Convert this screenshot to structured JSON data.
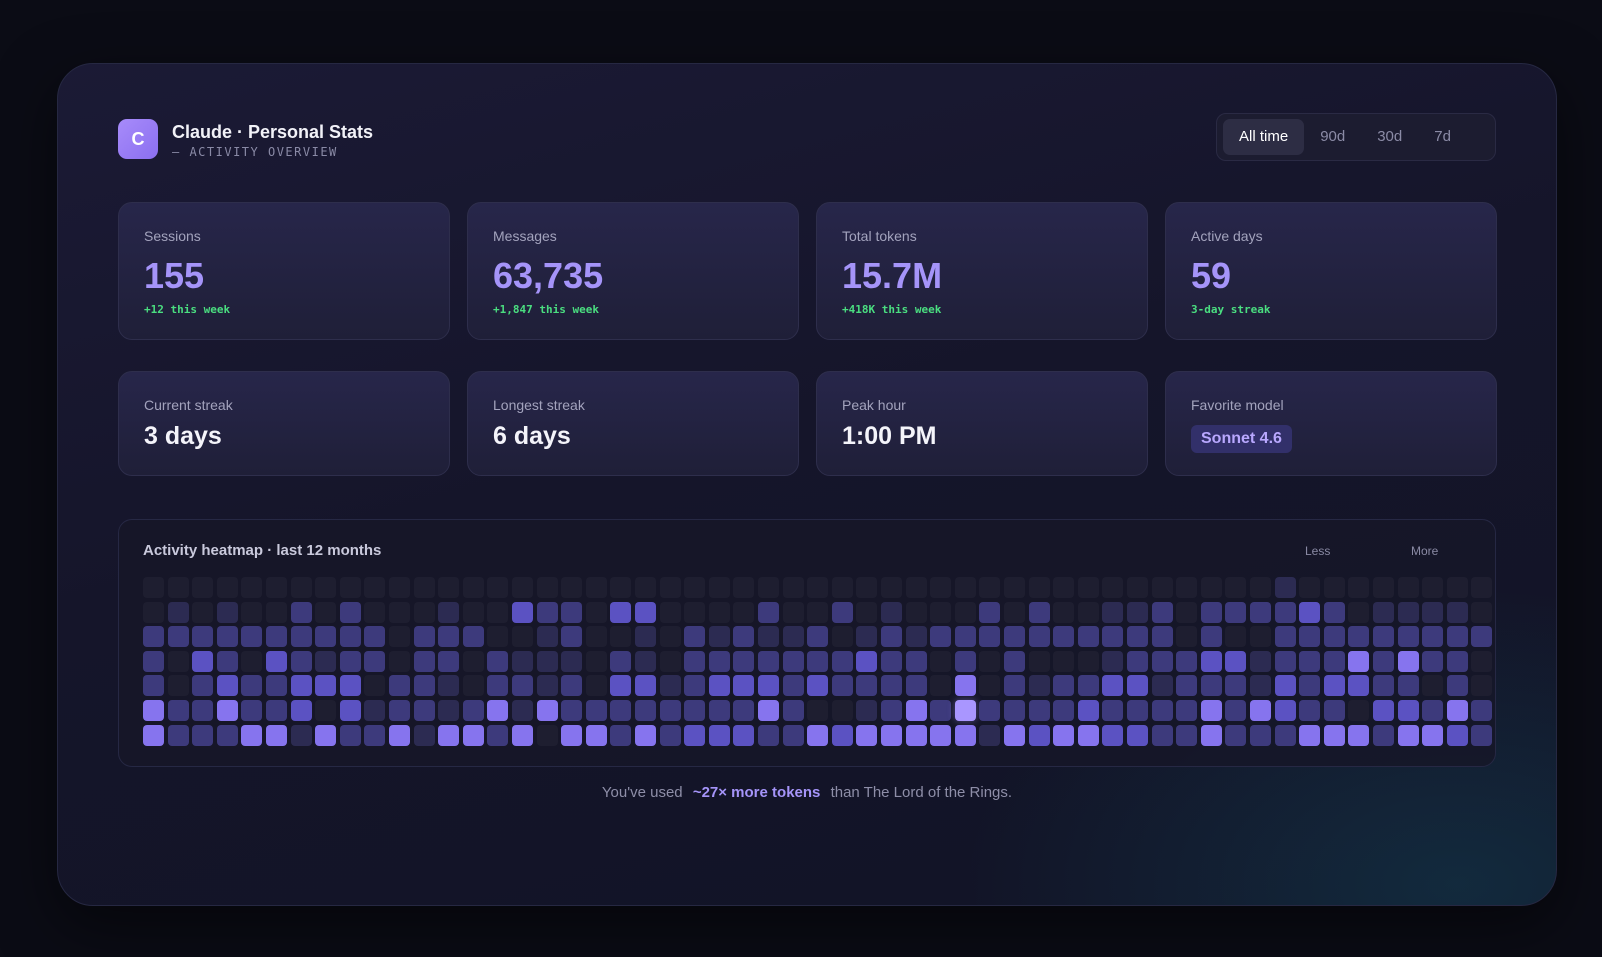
{
  "app": {
    "logo_letter": "C",
    "title": "Claude · Personal Stats",
    "subtitle": "— ACTIVITY OVERVIEW"
  },
  "range_options": [
    "All time",
    "90d",
    "30d",
    "7d"
  ],
  "range_selected": "All time",
  "stats": [
    {
      "label": "Sessions",
      "value": "155",
      "delta": "+12 this week"
    },
    {
      "label": "Messages",
      "value": "63,735",
      "delta": "+1,847 this week"
    },
    {
      "label": "Total tokens",
      "value": "15.7M",
      "delta": "+418K this week"
    },
    {
      "label": "Active days",
      "value": "59",
      "delta": "3-day streak"
    }
  ],
  "details": [
    {
      "label": "Current streak",
      "value": "3 days"
    },
    {
      "label": "Longest streak",
      "value": "6 days"
    },
    {
      "label": "Peak hour",
      "value": "1:00 PM"
    },
    {
      "label": "Favorite model",
      "value": "Sonnet 4.6"
    }
  ],
  "heatmap": {
    "title": "Activity heatmap · last 12 months",
    "legend_less": "Less",
    "legend_more": "More",
    "levels": [
      "0000000000000000000000000000000000000000000000100000000",
      "0101002020001003220330000200201000202001120222232011110",
      "2222222222022200120010212112012122222222220200222222222",
      "2032032122022021110210222222232202020001222331222424220",
      "2023223330221022120331233323222204021223312221323322020",
      "4224223031221241422222222420012425222232222424322033242",
      "4222441422414424044242333224344444143443322422244424432"
    ],
    "colors": {
      "l0": "#1e1e30",
      "l1": "#2c2b52",
      "l2": "#3d3a7c",
      "l3": "#5b52c2",
      "l4": "#8674ee",
      "l5": "#a996ff"
    }
  },
  "footer": {
    "prefix": "You've used",
    "highlight": "~27× more tokens",
    "suffix": "than The Lord of the Rings."
  }
}
